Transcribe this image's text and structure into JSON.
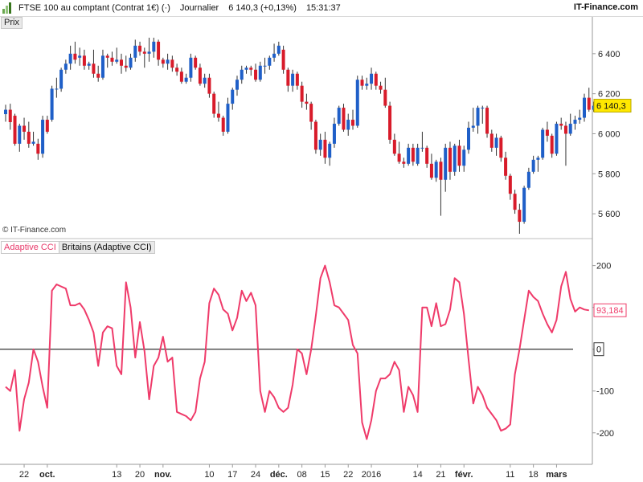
{
  "header": {
    "title": "FTSE 100 au comptant (Contrat 1€) (·)",
    "period": "Journalier",
    "quote": "6 140,3 (+0,13%)",
    "time": "15:31:37",
    "brand": "IT-Finance.com"
  },
  "price_panel": {
    "tag": "Prix",
    "copyright": "© IT-Finance.com"
  },
  "cci_panel": {
    "legend_name": "Adaptive CCI",
    "legend_desc": "Britains (Adaptive CCI)"
  },
  "colors": {
    "up": "#1f5fc8",
    "down": "#d81b2a",
    "cci": "#ef3b6a",
    "wick": "#333333",
    "zero": "#000000"
  },
  "chart_data": [
    {
      "type": "candlestick",
      "title": "FTSE 100 au comptant (Contrat 1€)",
      "ylim": [
        5480,
        6580
      ],
      "yticks": [
        5600,
        5800,
        6000,
        6200,
        6400
      ],
      "ytick_labels": [
        "5 600",
        "5 800",
        "6 000",
        "6 200",
        "6 400"
      ],
      "last_value": 6140.3,
      "last_value_label": "6 140,3",
      "x_labels": [
        "22",
        "oct.",
        "13",
        "20",
        "nov.",
        "10",
        "17",
        "24",
        "déc.",
        "08",
        "15",
        "22",
        "2016",
        "14",
        "21",
        "févr.",
        "11",
        "18",
        "mars"
      ],
      "x_label_positions": [
        4,
        9,
        24,
        29,
        34,
        44,
        49,
        54,
        59,
        64,
        69,
        74,
        79,
        89,
        94,
        99,
        109,
        114,
        119
      ],
      "candles": [
        [
          6098,
          6145,
          6060,
          6120
        ],
        [
          6120,
          6150,
          6020,
          6058
        ],
        [
          6090,
          6100,
          5940,
          5950
        ],
        [
          5950,
          6050,
          5910,
          6040
        ],
        [
          6040,
          6080,
          5970,
          6010
        ],
        [
          6010,
          6060,
          5930,
          5950
        ],
        [
          5950,
          6010,
          5940,
          5960
        ],
        [
          5950,
          5975,
          5870,
          5900
        ],
        [
          5900,
          6090,
          5880,
          6070
        ],
        [
          6070,
          6090,
          6000,
          6010
        ],
        [
          6070,
          6240,
          6060,
          6225
        ],
        [
          6225,
          6280,
          6180,
          6225
        ],
        [
          6225,
          6330,
          6210,
          6320
        ],
        [
          6320,
          6370,
          6300,
          6350
        ],
        [
          6350,
          6440,
          6320,
          6400
        ],
        [
          6400,
          6460,
          6350,
          6370
        ],
        [
          6380,
          6430,
          6340,
          6390
        ],
        [
          6390,
          6420,
          6320,
          6340
        ],
        [
          6340,
          6360,
          6320,
          6350
        ],
        [
          6350,
          6420,
          6280,
          6300
        ],
        [
          6300,
          6340,
          6260,
          6280
        ],
        [
          6280,
          6420,
          6270,
          6390
        ],
        [
          6390,
          6400,
          6330,
          6380
        ],
        [
          6380,
          6410,
          6340,
          6360
        ],
        [
          6360,
          6430,
          6350,
          6370
        ],
        [
          6370,
          6400,
          6300,
          6340
        ],
        [
          6340,
          6390,
          6310,
          6330
        ],
        [
          6330,
          6400,
          6320,
          6380
        ],
        [
          6380,
          6470,
          6360,
          6440
        ],
        [
          6440,
          6460,
          6390,
          6410
        ],
        [
          6410,
          6430,
          6330,
          6400
        ],
        [
          6400,
          6480,
          6360,
          6410
        ],
        [
          6410,
          6480,
          6380,
          6460
        ],
        [
          6460,
          6470,
          6340,
          6370
        ],
        [
          6370,
          6380,
          6330,
          6350
        ],
        [
          6350,
          6400,
          6320,
          6370
        ],
        [
          6370,
          6390,
          6310,
          6330
        ],
        [
          6330,
          6350,
          6290,
          6310
        ],
        [
          6310,
          6330,
          6250,
          6260
        ],
        [
          6260,
          6300,
          6250,
          6280
        ],
        [
          6280,
          6400,
          6260,
          6380
        ],
        [
          6380,
          6390,
          6320,
          6330
        ],
        [
          6330,
          6350,
          6240,
          6250
        ],
        [
          6250,
          6300,
          6230,
          6280
        ],
        [
          6280,
          6300,
          6180,
          6200
        ],
        [
          6200,
          6210,
          6080,
          6100
        ],
        [
          6100,
          6160,
          6060,
          6080
        ],
        [
          6080,
          6090,
          5990,
          6010
        ],
        [
          6010,
          6180,
          6000,
          6150
        ],
        [
          6150,
          6230,
          6120,
          6220
        ],
        [
          6220,
          6290,
          6190,
          6270
        ],
        [
          6270,
          6340,
          6250,
          6320
        ],
        [
          6320,
          6340,
          6300,
          6330
        ],
        [
          6330,
          6340,
          6290,
          6320
        ],
        [
          6320,
          6350,
          6260,
          6270
        ],
        [
          6270,
          6360,
          6260,
          6340
        ],
        [
          6340,
          6380,
          6300,
          6340
        ],
        [
          6340,
          6390,
          6320,
          6380
        ],
        [
          6380,
          6450,
          6360,
          6400
        ],
        [
          6400,
          6460,
          6390,
          6440
        ],
        [
          6420,
          6440,
          6300,
          6320
        ],
        [
          6320,
          6330,
          6210,
          6240
        ],
        [
          6240,
          6320,
          6210,
          6300
        ],
        [
          6300,
          6310,
          6220,
          6240
        ],
        [
          6240,
          6260,
          6130,
          6160
        ],
        [
          6160,
          6200,
          6120,
          6150
        ],
        [
          6150,
          6160,
          6020,
          6060
        ],
        [
          6060,
          6070,
          5900,
          5920
        ],
        [
          5920,
          6000,
          5890,
          5970
        ],
        [
          5970,
          6010,
          5850,
          5880
        ],
        [
          5880,
          5960,
          5840,
          5950
        ],
        [
          5950,
          6080,
          5930,
          6050
        ],
        [
          6050,
          6140,
          6040,
          6130
        ],
        [
          6130,
          6150,
          6010,
          6020
        ],
        [
          6020,
          6100,
          5990,
          6070
        ],
        [
          6070,
          6120,
          6020,
          6040
        ],
        [
          6040,
          6290,
          6030,
          6270
        ],
        [
          6270,
          6290,
          6220,
          6240
        ],
        [
          6240,
          6280,
          6220,
          6250
        ],
        [
          6250,
          6330,
          6220,
          6300
        ],
        [
          6300,
          6310,
          6220,
          6240
        ],
        [
          6240,
          6260,
          6200,
          6220
        ],
        [
          6220,
          6280,
          6130,
          6140
        ],
        [
          6140,
          6160,
          5950,
          5970
        ],
        [
          5970,
          6000,
          5890,
          5900
        ],
        [
          5900,
          5960,
          5850,
          5860
        ],
        [
          5860,
          5880,
          5830,
          5850
        ],
        [
          5850,
          5950,
          5840,
          5930
        ],
        [
          5930,
          5950,
          5840,
          5860
        ],
        [
          5850,
          5950,
          5840,
          5930
        ],
        [
          5930,
          6010,
          5910,
          5930
        ],
        [
          5930,
          5940,
          5830,
          5850
        ],
        [
          5850,
          5900,
          5770,
          5780
        ],
        [
          5780,
          5870,
          5760,
          5860
        ],
        [
          5860,
          5880,
          5590,
          5770
        ],
        [
          5770,
          5950,
          5710,
          5930
        ],
        [
          5930,
          5960,
          5770,
          5810
        ],
        [
          5810,
          5950,
          5790,
          5940
        ],
        [
          5940,
          5970,
          5810,
          5840
        ],
        [
          5840,
          5940,
          5810,
          5920
        ],
        [
          5920,
          6060,
          5900,
          6030
        ],
        [
          6030,
          6130,
          6010,
          6040
        ],
        [
          6040,
          6140,
          6000,
          6130
        ],
        [
          6130,
          6140,
          6050,
          6130
        ],
        [
          6130,
          6140,
          5980,
          6000
        ],
        [
          6000,
          6020,
          5910,
          5930
        ],
        [
          5930,
          6000,
          5890,
          5980
        ],
        [
          5980,
          5990,
          5860,
          5880
        ],
        [
          5880,
          5910,
          5770,
          5790
        ],
        [
          5790,
          5800,
          5670,
          5700
        ],
        [
          5700,
          5720,
          5600,
          5620
        ],
        [
          5620,
          5650,
          5500,
          5560
        ],
        [
          5560,
          5740,
          5550,
          5730
        ],
        [
          5730,
          5830,
          5720,
          5810
        ],
        [
          5810,
          5890,
          5800,
          5870
        ],
        [
          5870,
          5890,
          5810,
          5880
        ],
        [
          5880,
          6030,
          5870,
          6020
        ],
        [
          6020,
          6060,
          5960,
          5990
        ],
        [
          5990,
          6000,
          5880,
          5900
        ],
        [
          5900,
          6060,
          5890,
          6050
        ],
        [
          6050,
          6080,
          6020,
          6040
        ],
        [
          6040,
          6060,
          5840,
          6000
        ],
        [
          6000,
          6100,
          5990,
          6050
        ],
        [
          6050,
          6090,
          6020,
          6070
        ],
        [
          6070,
          6120,
          6050,
          6080
        ],
        [
          6080,
          6200,
          6060,
          6180
        ],
        [
          6180,
          6230,
          6110,
          6120
        ],
        [
          6120,
          6160,
          6110,
          6140
        ]
      ]
    },
    {
      "type": "line",
      "title": "Adaptive CCI",
      "ylim": [
        -260,
        230
      ],
      "yticks": [
        -200,
        -100,
        0,
        100,
        200
      ],
      "ytick_labels": [
        "-200",
        "-100",
        "0",
        "100",
        "200"
      ],
      "last_value": 93.184,
      "last_value_label": "93,184",
      "series": [
        {
          "name": "Adaptive CCI",
          "values": [
            -90,
            -100,
            -50,
            -195,
            -120,
            -80,
            0,
            -30,
            -90,
            -140,
            140,
            155,
            150,
            145,
            105,
            105,
            110,
            95,
            70,
            40,
            -40,
            40,
            55,
            50,
            -40,
            -60,
            160,
            100,
            -20,
            65,
            -5,
            -120,
            -40,
            -20,
            30,
            -30,
            -20,
            -150,
            -155,
            -160,
            -170,
            -150,
            -70,
            -30,
            110,
            145,
            130,
            95,
            85,
            45,
            75,
            140,
            115,
            135,
            105,
            -100,
            -150,
            -100,
            -115,
            -140,
            -150,
            -140,
            -85,
            0,
            -10,
            -60,
            0,
            80,
            170,
            200,
            160,
            105,
            100,
            85,
            70,
            10,
            -10,
            -175,
            -215,
            -170,
            -100,
            -70,
            -70,
            -60,
            -30,
            -50,
            -150,
            -90,
            -110,
            -150,
            100,
            100,
            55,
            110,
            55,
            60,
            95,
            170,
            160,
            85,
            -25,
            -130,
            -90,
            -110,
            -140,
            -155,
            -170,
            -195,
            -190,
            -180,
            -60,
            0,
            70,
            140,
            125,
            115,
            85,
            60,
            40,
            70,
            150,
            185,
            120,
            90,
            100,
            95,
            93
          ]
        }
      ]
    }
  ]
}
